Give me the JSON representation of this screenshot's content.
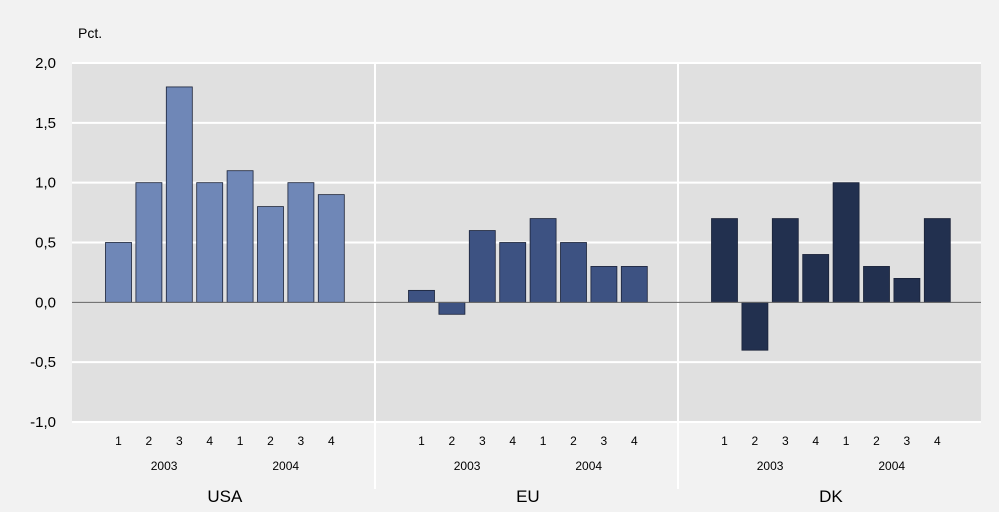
{
  "chart_data": {
    "type": "bar",
    "ylabel": "Pct.",
    "ylim": [
      -1.0,
      2.0
    ],
    "yticks": [
      "2,0",
      "1,5",
      "1,0",
      "0,5",
      "0,0",
      "-0,5",
      "-1,0"
    ],
    "ytick_values": [
      2.0,
      1.5,
      1.0,
      0.5,
      0.0,
      -0.5,
      -1.0
    ],
    "grid": true,
    "quarters": [
      "1",
      "2",
      "3",
      "4",
      "1",
      "2",
      "3",
      "4"
    ],
    "years": [
      "2003",
      "2004"
    ],
    "panels": [
      {
        "name": "USA",
        "color": "#6f87b7",
        "values": [
          0.5,
          1.0,
          1.8,
          1.0,
          1.1,
          0.8,
          1.0,
          0.9
        ]
      },
      {
        "name": "EU",
        "color": "#3d5282",
        "values": [
          0.1,
          -0.1,
          0.6,
          0.5,
          0.7,
          0.5,
          0.3,
          0.3
        ]
      },
      {
        "name": "DK",
        "color": "#22304f",
        "values": [
          0.7,
          -0.4,
          0.7,
          0.4,
          1.0,
          0.3,
          0.2,
          0.7
        ]
      }
    ]
  },
  "colors": {
    "background": "#f2f2f2",
    "plot_background": "#e0e0e0",
    "gridline": "#ffffff",
    "zero_line": "#666666"
  }
}
